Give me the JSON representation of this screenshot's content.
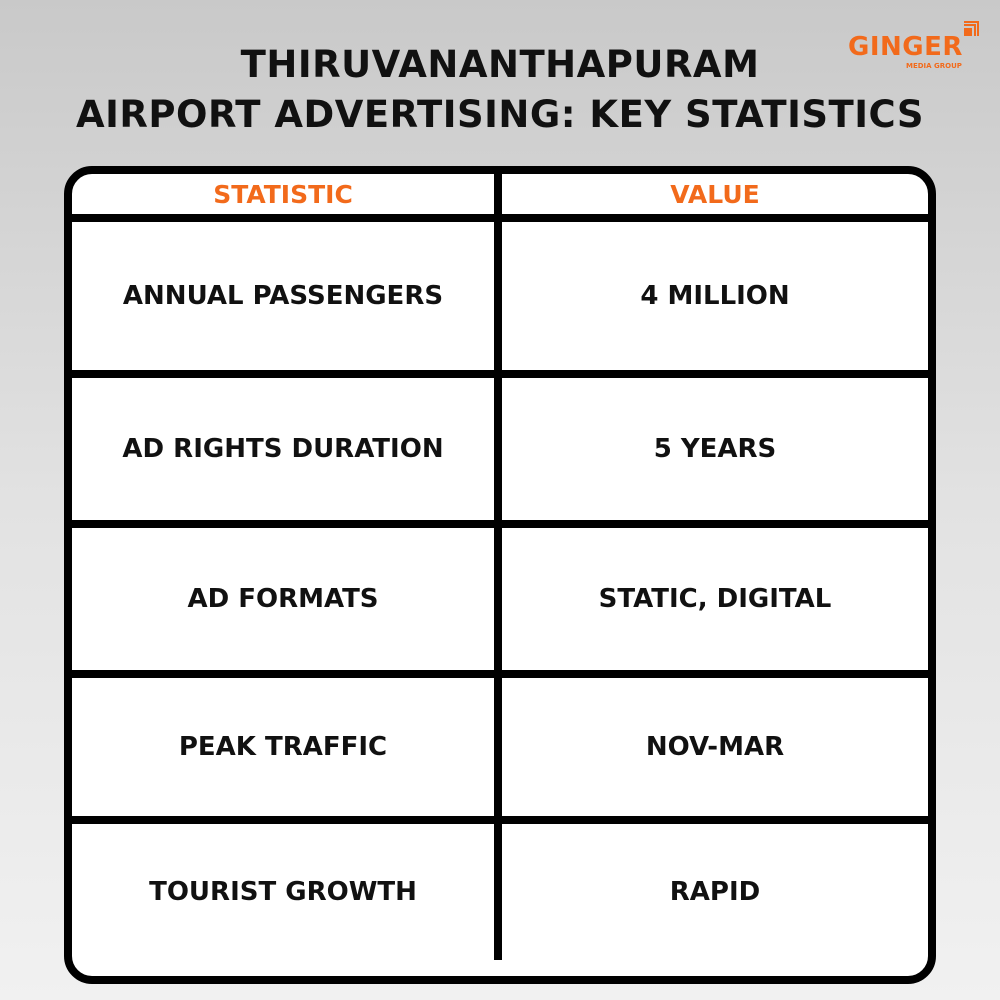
{
  "title": {
    "line1": "THIRUVANANTHAPURAM",
    "line2": "AIRPORT ADVERTISING: KEY STATISTICS"
  },
  "logo": {
    "name": "GINGER",
    "tagline": "MEDIA GROUP",
    "color": "#f26a1b"
  },
  "table": {
    "headers": [
      "STATISTIC",
      "VALUE"
    ],
    "rows": [
      {
        "statistic": "ANNUAL PASSENGERS",
        "value": "4 MILLION"
      },
      {
        "statistic": "AD RIGHTS DURATION",
        "value": "5 YEARS"
      },
      {
        "statistic": "AD FORMATS",
        "value": "STATIC, DIGITAL"
      },
      {
        "statistic": "PEAK TRAFFIC",
        "value": "NOV-MAR"
      },
      {
        "statistic": "TOURIST GROWTH",
        "value": "RAPID"
      }
    ],
    "header_color": "#f26a1b"
  }
}
